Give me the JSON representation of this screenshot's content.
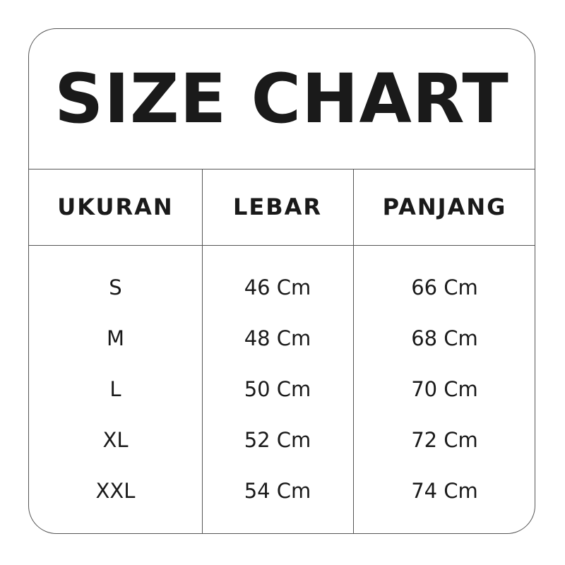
{
  "title": "SIZE CHART",
  "headers": [
    "UKURAN",
    "LEBAR",
    "PANJANG"
  ],
  "rows": [
    [
      "S",
      "46 Cm",
      "66 Cm"
    ],
    [
      "M",
      "48 Cm",
      "68 Cm"
    ],
    [
      "L",
      "50 Cm",
      "70 Cm"
    ],
    [
      "XL",
      "52 Cm",
      "72 Cm"
    ],
    [
      "XXL",
      "54 Cm",
      "74 Cm"
    ]
  ]
}
